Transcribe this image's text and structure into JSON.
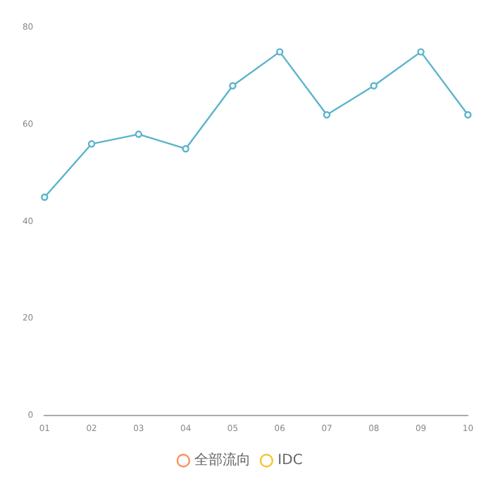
{
  "chart_data": {
    "type": "line",
    "categories": [
      "01",
      "02",
      "03",
      "04",
      "05",
      "06",
      "07",
      "08",
      "09",
      "10"
    ],
    "series": [
      {
        "name": "全部流向",
        "color": "#f8925a",
        "values": [
          null,
          null,
          null,
          null,
          null,
          null,
          null,
          null,
          null,
          null
        ]
      },
      {
        "name": "IDC",
        "color": "#f5c32c",
        "values": [
          null,
          null,
          null,
          null,
          null,
          null,
          null,
          null,
          null,
          null
        ]
      },
      {
        "color": "#5ab4cc",
        "values": [
          45,
          56,
          58,
          55,
          68,
          75,
          62,
          68,
          75,
          62
        ]
      }
    ],
    "ylim": [
      0,
      80
    ],
    "yticks": [
      0,
      20,
      40,
      60,
      80
    ],
    "grid": false,
    "legend": "bottom",
    "marker": "circle",
    "line_style": "solid"
  }
}
